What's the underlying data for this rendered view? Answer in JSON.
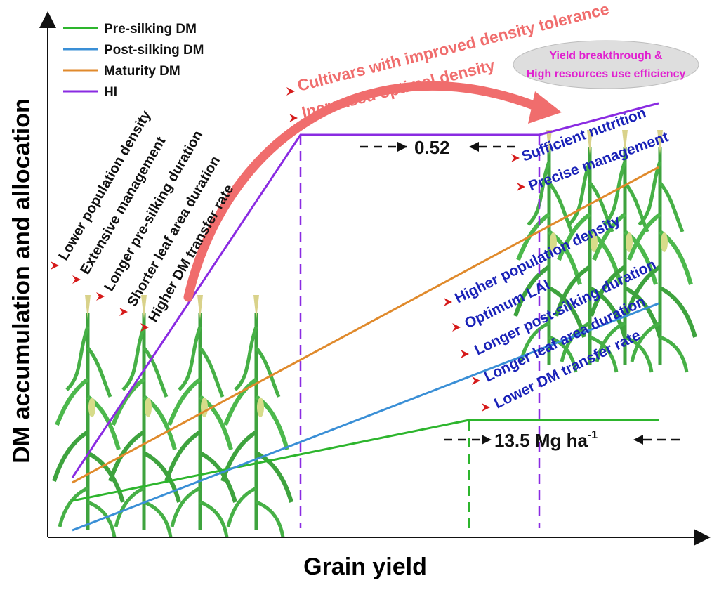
{
  "axes": {
    "ylabel": "DM accumulation and allocation",
    "xlabel": "Grain yield"
  },
  "legend": [
    {
      "label": "Pre-silking DM",
      "color": "#2db52d"
    },
    {
      "label": "Post-silking DM",
      "color": "#3a8fd6"
    },
    {
      "label": "Maturity DM",
      "color": "#e08a2c"
    },
    {
      "label": "HI",
      "color": "#8a2be2"
    }
  ],
  "left_factors": [
    "Lower population density",
    "Extensive management",
    "Longer pre-silking duration",
    "Shorter leaf area duration",
    "Higher DM transfer rate"
  ],
  "right_upper_factors": [
    "Sufficient nutrition",
    "Precise management"
  ],
  "right_lower_factors": [
    "Higher population density",
    "Optimum LAI",
    "Longer  post-silking duration",
    "Longer leaf area duration",
    "Lower DM transfer rate"
  ],
  "strategies": [
    "Cultivars with improved density tolerance",
    "Increased optimal density"
  ],
  "ellipse": {
    "line1": "Yield breakthrough &",
    "line2": "High resources use efficiency"
  },
  "hi_annotation": "0.52",
  "yield_annotation": {
    "value": "13.5 Mg ha",
    "superscript": "-1"
  },
  "colors": {
    "arrow": "#f06d6d",
    "blue_text": "#1a22b8",
    "magenta_text": "#e020d0",
    "red_markers": "#d61a1a",
    "hi_dashed": "#8a2be2",
    "pre_dashed": "#2db52d",
    "ellipse_fill": "#dedede"
  },
  "icons": [
    "maize-plant-icon",
    "red-arrowhead-bullet-icon"
  ]
}
